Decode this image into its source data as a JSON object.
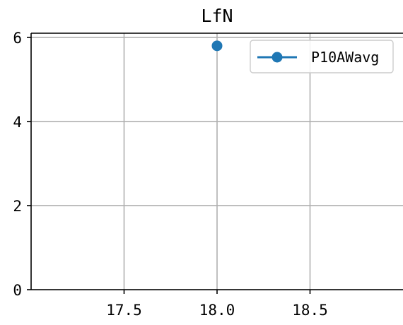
{
  "chart_data": {
    "type": "line",
    "title": "LfN",
    "xlabel": "",
    "ylabel": "",
    "xlim": [
      17.0,
      19.0
    ],
    "ylim": [
      0,
      6.1
    ],
    "x_ticks": [
      17.5,
      18.0,
      18.5
    ],
    "x_tick_labels": [
      "17.5",
      "18.0",
      "18.5"
    ],
    "y_ticks": [
      0,
      2,
      4,
      6
    ],
    "y_tick_labels": [
      "0",
      "2",
      "4",
      "6"
    ],
    "grid": true,
    "legend_position": "top-right",
    "series": [
      {
        "name": "P10AWavg",
        "color": "#1f77b4",
        "marker": "circle",
        "x": [
          18.0
        ],
        "y": [
          5.8
        ]
      }
    ]
  }
}
